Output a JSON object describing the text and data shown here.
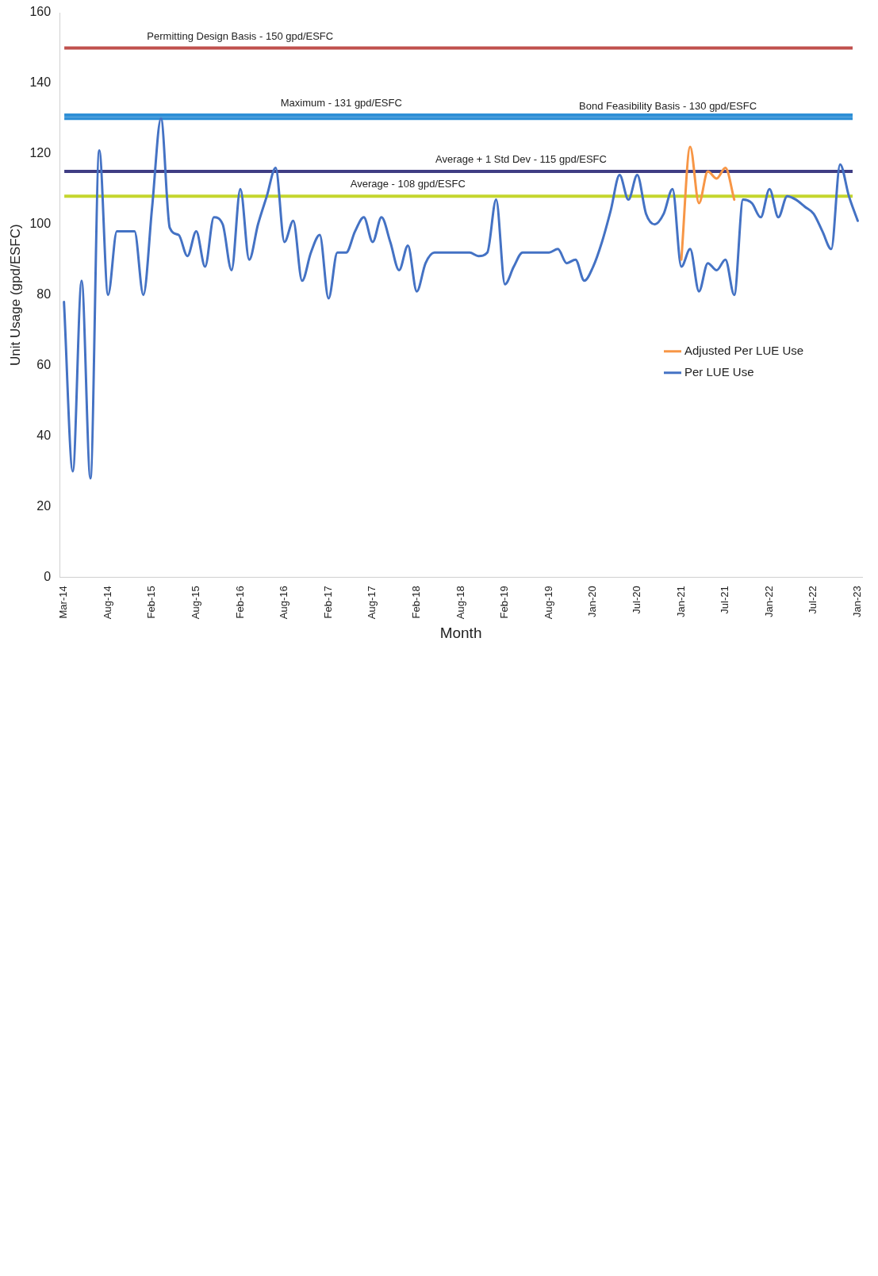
{
  "chart_data": {
    "type": "line",
    "xlabel": "Month",
    "ylabel": "Unit Usage (gpd/ESFC)",
    "categories": [
      "Mar-14",
      null,
      null,
      null,
      null,
      "Aug-14",
      null,
      null,
      null,
      null,
      "Feb-15",
      null,
      null,
      null,
      null,
      "Aug-15",
      null,
      null,
      null,
      null,
      "Feb-16",
      null,
      null,
      null,
      null,
      "Aug-16",
      null,
      null,
      null,
      null,
      "Feb-17",
      null,
      null,
      null,
      null,
      "Aug-17",
      null,
      null,
      null,
      null,
      "Feb-18",
      null,
      null,
      null,
      null,
      "Aug-18",
      null,
      null,
      null,
      null,
      "Feb-19",
      null,
      null,
      null,
      null,
      "Aug-19",
      null,
      null,
      null,
      null,
      "Jan-20",
      null,
      null,
      null,
      null,
      "Jul-20",
      null,
      null,
      null,
      null,
      "Jan-21",
      null,
      null,
      null,
      null,
      "Jul-21",
      null,
      null,
      null,
      null,
      "Jan-22",
      null,
      null,
      null,
      null,
      "Jul-22",
      null,
      null,
      null,
      null,
      "Jan-23"
    ],
    "series": [
      {
        "name": "Adjusted Per LUE Use",
        "color": "#f79646",
        "values": [
          null,
          null,
          null,
          null,
          null,
          null,
          null,
          null,
          null,
          null,
          null,
          null,
          null,
          null,
          null,
          null,
          null,
          null,
          null,
          null,
          null,
          null,
          null,
          null,
          null,
          null,
          null,
          null,
          null,
          null,
          null,
          null,
          null,
          null,
          null,
          null,
          null,
          null,
          null,
          null,
          null,
          null,
          null,
          null,
          null,
          null,
          null,
          null,
          null,
          null,
          null,
          null,
          null,
          null,
          null,
          null,
          null,
          null,
          null,
          null,
          null,
          null,
          null,
          null,
          null,
          null,
          null,
          null,
          null,
          null,
          90,
          122,
          106,
          115,
          113,
          116,
          107,
          null,
          null,
          null,
          null,
          null,
          null,
          null,
          null,
          null,
          null,
          null,
          null,
          null,
          null
        ]
      },
      {
        "name": "Per LUE Use",
        "color": "#4472c4",
        "values": [
          78,
          30,
          84,
          28,
          121,
          80,
          98,
          98,
          98,
          80,
          105,
          130,
          99,
          97,
          91,
          98,
          88,
          102,
          100,
          87,
          110,
          90,
          100,
          108,
          116,
          95,
          101,
          84,
          92,
          97,
          79,
          92,
          92,
          98,
          102,
          95,
          102,
          95,
          87,
          94,
          81,
          89,
          92,
          92,
          92,
          92,
          92,
          91,
          92,
          107,
          83,
          88,
          92,
          92,
          92,
          92,
          93,
          89,
          90,
          84,
          88,
          95,
          104,
          114,
          107,
          114,
          103,
          100,
          103,
          110,
          88,
          93,
          81,
          89,
          87,
          90,
          80,
          107,
          106,
          102,
          110,
          102,
          108,
          107,
          105,
          103,
          98,
          93,
          117,
          108,
          101
        ]
      }
    ],
    "ylim": [
      0,
      160
    ],
    "yticks": [
      0,
      20,
      40,
      60,
      80,
      100,
      120,
      140,
      160
    ],
    "ref_lines": [
      {
        "axis": "y",
        "value": 150,
        "label": "Permitting Design Basis - 150 gpd/ESFC",
        "color": "#c0504d"
      },
      {
        "axis": "y",
        "value": 131,
        "label": "Maximum - 131 gpd/ESFC",
        "color": "#2e8fd6"
      },
      {
        "axis": "y",
        "value": 130,
        "label": "Bond Feasibility Basis - 130 gpd/ESFC",
        "color": "#2e8fd6"
      },
      {
        "axis": "y",
        "value": 115,
        "label": "Average + 1 Std Dev - 115 gpd/ESFC",
        "color": "#3f3d84"
      },
      {
        "axis": "y",
        "value": 108,
        "label": "Average - 108 gpd/ESFC",
        "color": "#c5d62e"
      }
    ],
    "legend": "right",
    "grid": false,
    "marker": "none",
    "line_style": "solid"
  }
}
